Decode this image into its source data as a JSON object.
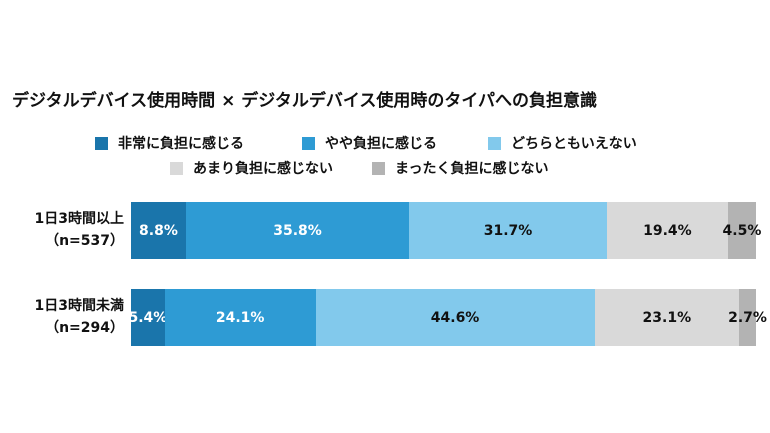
{
  "chart_data": {
    "type": "bar",
    "orientation": "horizontal-stacked-100",
    "title": "デジタルデバイス使用時間 × デジタルデバイス使用時のタイパへの負担意識",
    "legend": [
      {
        "name": "非常に負担に感じる",
        "color": "#1a75ab"
      },
      {
        "name": "やや負担に感じる",
        "color": "#2e9bd4"
      },
      {
        "name": "どちらともいえない",
        "color": "#82c9ec"
      },
      {
        "name": "あまり負担に感じない",
        "color": "#d9d9d9"
      },
      {
        "name": "まったく負担に感じない",
        "color": "#b3b3b3"
      }
    ],
    "categories": [
      {
        "label_line1": "1日3時間以上",
        "label_line2": "（n=537）"
      },
      {
        "label_line1": "1日3時間未満",
        "label_line2": "（n=294）"
      }
    ],
    "series": [
      {
        "name": "非常に負担に感じる",
        "values": [
          8.8,
          5.4
        ],
        "labels": [
          "8.8%",
          "5.4%"
        ],
        "label_color": "#ffffff"
      },
      {
        "name": "やや負担に感じる",
        "values": [
          35.8,
          24.1
        ],
        "labels": [
          "35.8%",
          "24.1%"
        ],
        "label_color": "#ffffff"
      },
      {
        "name": "どちらともいえない",
        "values": [
          31.7,
          44.6
        ],
        "labels": [
          "31.7%",
          "44.6%"
        ],
        "label_color": "#111111"
      },
      {
        "name": "あまり負担に感じない",
        "values": [
          19.4,
          23.1
        ],
        "labels": [
          "19.4%",
          "23.1%"
        ],
        "label_color": "#111111"
      },
      {
        "name": "まったく負担に感じない",
        "values": [
          4.5,
          2.7
        ],
        "labels": [
          "4.5%",
          "2.7%"
        ],
        "label_color": "#111111"
      }
    ]
  }
}
